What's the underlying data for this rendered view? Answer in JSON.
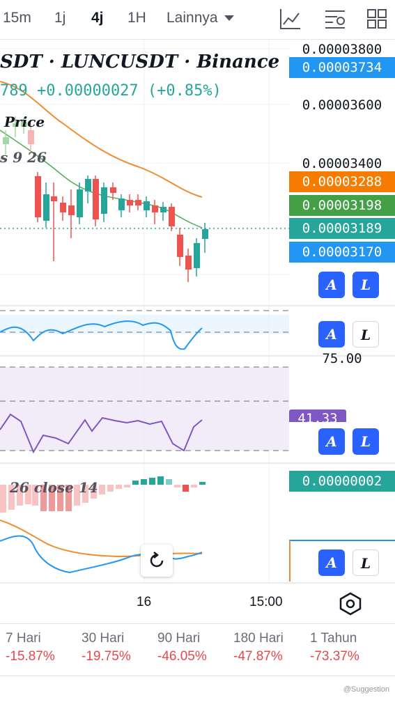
{
  "toolbar": {
    "timeframes": [
      "15m",
      "1j",
      "4j",
      "1H"
    ],
    "active": "4j",
    "more_label": "Lainnya",
    "icons": [
      "chart-indicator-icon",
      "chart-settings-icon",
      "layout-grid-icon"
    ]
  },
  "legend": {
    "symbol_line": "SDT · LUNCUSDT · Binance",
    "change_line": "789 +0.00000027 (+0.85%)",
    "ma_label": "Price",
    "ma_params": "s 9 26",
    "macd_params": "26 close 14"
  },
  "price_axis": {
    "ticks": [
      "0.00003800",
      "0.00003600",
      "0.00003400"
    ],
    "tags": [
      {
        "text": "0.00003734",
        "color": "#2196f3"
      },
      {
        "text": "0.00003288",
        "color": "#f57c00"
      },
      {
        "text": "0.00003198",
        "color": "#43a047"
      },
      {
        "text": "0.00003189",
        "color": "#26a69a"
      },
      {
        "text": "0.00003170",
        "color": "#2196f3"
      }
    ]
  },
  "rsi_axis": {
    "tick": "75.00",
    "tag": "41.33",
    "tag_color": "#7e57c2"
  },
  "macd_axis": {
    "tag": "0.00000002",
    "tag_color": "#26a69a"
  },
  "time_axis": {
    "labels": [
      "16",
      "15:00"
    ]
  },
  "buttons": {
    "auto": "A",
    "log": "L"
  },
  "performance": [
    {
      "period": "7 Hari",
      "value": "-15.87%"
    },
    {
      "period": "30 Hari",
      "value": "-19.75%"
    },
    {
      "period": "90 Hari",
      "value": "-46.05%"
    },
    {
      "period": "180 Hari",
      "value": "-47.87%"
    },
    {
      "period": "1 Tahun",
      "value": "-73.37%"
    }
  ],
  "watermark": "@Suggestion",
  "colors": {
    "up": "#26a69a",
    "down": "#ef5350",
    "accent": "#2962ff"
  }
}
